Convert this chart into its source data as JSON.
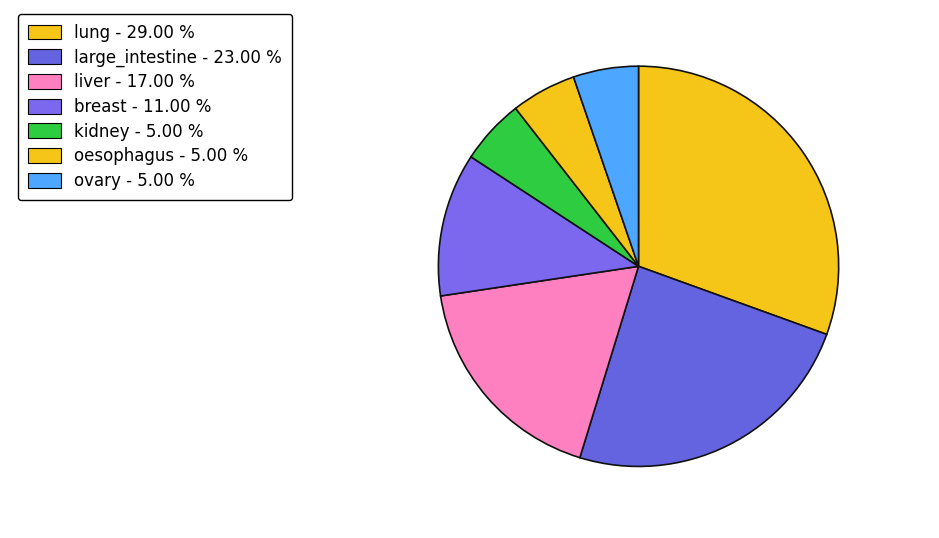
{
  "labels": [
    "lung",
    "large_intestine",
    "liver",
    "breast",
    "kidney",
    "oesophagus",
    "ovary"
  ],
  "values": [
    29.0,
    23.0,
    17.0,
    11.0,
    5.0,
    5.0,
    5.0
  ],
  "colors": [
    "#f5c518",
    "#6464e0",
    "#ff80c0",
    "#7b68ee",
    "#2ecc40",
    "#f5c518",
    "#4da6ff"
  ],
  "legend_labels": [
    "lung - 29.00 %",
    "large_intestine - 23.00 %",
    "liver - 17.00 %",
    "breast - 11.00 %",
    "kidney - 5.00 %",
    "oesophagus - 5.00 %",
    "ovary - 5.00 %"
  ],
  "legend_colors": [
    "#f5c518",
    "#6464e0",
    "#ff80c0",
    "#7b68ee",
    "#2ecc40",
    "#f5c518",
    "#4da6ff"
  ],
  "startangle": 90,
  "counterclock": false,
  "background_color": "#ffffff",
  "figsize": [
    9.39,
    5.38
  ],
  "dpi": 100,
  "legend_fontsize": 12,
  "edge_color": "#111111",
  "edge_width": 1.2
}
